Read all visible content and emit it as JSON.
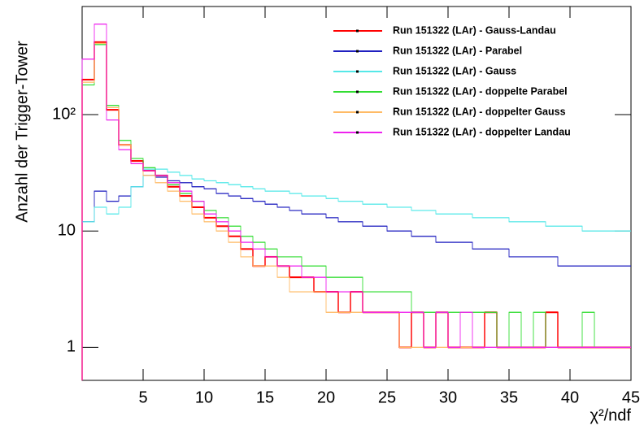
{
  "chart_data": {
    "type": "histogram",
    "y_label": "Anzahl der Trigger-Tower",
    "x_label": "χ²/ndf",
    "log_y": true,
    "xlim": [
      0,
      45
    ],
    "ylim": [
      0.52,
      850
    ],
    "xticks": [
      5,
      10,
      15,
      20,
      25,
      30,
      35,
      40,
      45
    ],
    "yticks": [
      1,
      10,
      {
        "value": 100,
        "label": "10²"
      }
    ],
    "legend": "top-right",
    "bins": [
      0,
      1,
      2,
      3,
      4,
      5,
      6,
      7,
      8,
      9,
      10,
      11,
      12,
      13,
      14,
      15,
      16,
      17,
      18,
      19,
      20,
      21,
      22,
      23,
      24,
      25,
      26,
      27,
      28,
      29,
      30,
      31,
      32,
      33,
      34,
      35,
      36,
      37,
      38,
      39,
      40,
      41,
      42,
      43,
      44,
      45
    ],
    "series": [
      {
        "name": "Run 151322 (LAr) - Gauss-Landau",
        "color": "#ff0000",
        "values": [
          200,
          420,
          110,
          55,
          40,
          33,
          30,
          24,
          20,
          16,
          13,
          11,
          9,
          7,
          5,
          6,
          5,
          4,
          4,
          3,
          3,
          2,
          3,
          2,
          2,
          2,
          1,
          2,
          1,
          2,
          1,
          1,
          1,
          2,
          1,
          1,
          1,
          1,
          2,
          1,
          1,
          1,
          1,
          1,
          1
        ]
      },
      {
        "name": "Run 151322 (LAr) - Parabel",
        "color": "#2020c0",
        "values": [
          12,
          22,
          18,
          20,
          24,
          30,
          29,
          27,
          26,
          24,
          23,
          21,
          20,
          19,
          18,
          17,
          16,
          15,
          14,
          14,
          13,
          12,
          12,
          11,
          11,
          10,
          10,
          9,
          9,
          8,
          8,
          8,
          7,
          7,
          7,
          6,
          6,
          6,
          6,
          5,
          5,
          5,
          5,
          5,
          5
        ]
      },
      {
        "name": "Run 151322 (LAr) - Gauss",
        "color": "#55e8e8",
        "values": [
          12,
          16,
          14,
          16,
          24,
          34,
          34,
          32,
          30,
          28,
          27,
          26,
          25,
          24,
          23,
          22,
          22,
          21,
          20,
          20,
          19,
          18,
          18,
          17,
          17,
          16,
          16,
          15,
          15,
          14,
          14,
          14,
          13,
          13,
          13,
          12,
          12,
          12,
          11,
          11,
          11,
          10,
          10,
          10,
          10
        ]
      },
      {
        "name": "Run 151322 (LAr) - doppelte Parabel",
        "color": "#33dd33",
        "values": [
          180,
          400,
          120,
          60,
          42,
          35,
          30,
          25,
          21,
          18,
          15,
          13,
          11,
          9,
          8,
          7,
          6,
          6,
          5,
          5,
          4,
          4,
          4,
          3,
          3,
          3,
          3,
          2,
          2,
          2,
          2,
          2,
          2,
          2,
          1,
          2,
          1,
          2,
          1,
          1,
          1,
          2,
          1,
          1,
          1
        ]
      },
      {
        "name": "Run 151322 (LAr) - doppelter Gauss",
        "color": "#ffbb66",
        "values": [
          190,
          410,
          115,
          55,
          38,
          30,
          26,
          22,
          18,
          14,
          12,
          10,
          8,
          6,
          5,
          5,
          4,
          3,
          3,
          3,
          2,
          2,
          2,
          2,
          2,
          2,
          1,
          1,
          1,
          1,
          1,
          1,
          1,
          1,
          1,
          1,
          1,
          1,
          1,
          1,
          1,
          1,
          1,
          1,
          1
        ]
      },
      {
        "name": "Run 151322 (LAr) - doppelter Landau",
        "color": "#ee22ee",
        "values": [
          300,
          600,
          90,
          50,
          38,
          33,
          30,
          26,
          22,
          18,
          14,
          12,
          10,
          8,
          7,
          6,
          5,
          5,
          4,
          4,
          3,
          3,
          3,
          2,
          2,
          2,
          2,
          2,
          1,
          2,
          1,
          2,
          1,
          1,
          1,
          1,
          1,
          1,
          1,
          1,
          1,
          1,
          1,
          1,
          1
        ]
      }
    ]
  }
}
